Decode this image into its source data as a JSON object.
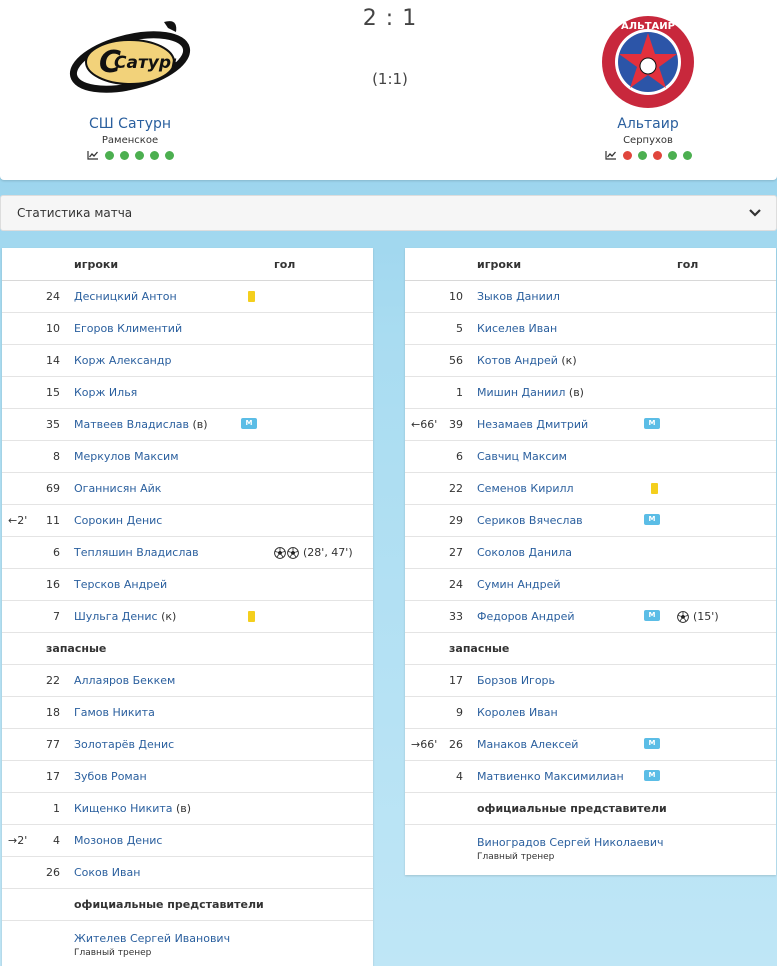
{
  "match": {
    "score": "2 : 1",
    "halftime": "(1:1)"
  },
  "home": {
    "name": "СШ Сатурн",
    "city": "Раменское",
    "form": [
      "w",
      "w",
      "w",
      "w",
      "w"
    ],
    "logo_text": "Сатурн"
  },
  "away": {
    "name": "Альтаир",
    "city": "Серпухов",
    "form": [
      "l",
      "w",
      "l",
      "w",
      "w"
    ],
    "logo_text": "АЛЬТАИР"
  },
  "stats_bar": {
    "label": "Статистика матча"
  },
  "columns": {
    "players": "игроки",
    "goal": "гол"
  },
  "home_lineup": {
    "starters": [
      {
        "num": "24",
        "name": "Десницкий Антон",
        "card": true
      },
      {
        "num": "10",
        "name": "Егоров Климентий"
      },
      {
        "num": "14",
        "name": "Корж Александр"
      },
      {
        "num": "15",
        "name": "Корж Илья"
      },
      {
        "num": "35",
        "name": "Матвеев Владислав",
        "role": "(в)",
        "badge": "М"
      },
      {
        "num": "8",
        "name": "Меркулов Максим"
      },
      {
        "num": "69",
        "name": "Оганнисян Айк"
      },
      {
        "num": "11",
        "name": "Сорокин Денис",
        "sub": "←2'"
      },
      {
        "num": "6",
        "name": "Тепляшин Владислав",
        "balls": 2,
        "goals": "(28', 47')"
      },
      {
        "num": "16",
        "name": "Терсков Андрей"
      },
      {
        "num": "7",
        "name": "Шульга Денис",
        "role": "(к)",
        "card": true
      }
    ],
    "subs_label": "запасные",
    "subs": [
      {
        "num": "22",
        "name": "Аллаяров Беккем"
      },
      {
        "num": "18",
        "name": "Гамов Никита"
      },
      {
        "num": "77",
        "name": "Золотарёв Денис"
      },
      {
        "num": "17",
        "name": "Зубов Роман"
      },
      {
        "num": "1",
        "name": "Кищенко Никита",
        "role": "(в)"
      },
      {
        "num": "4",
        "name": "Мозонов Денис",
        "sub": "→2'"
      },
      {
        "num": "26",
        "name": "Соков Иван"
      }
    ],
    "officials_label": "официальные представители",
    "officials": [
      {
        "name": "Жителев Сергей Иванович",
        "title": "Главный тренер"
      }
    ]
  },
  "away_lineup": {
    "starters": [
      {
        "num": "10",
        "name": "Зыков Даниил"
      },
      {
        "num": "5",
        "name": "Киселев Иван"
      },
      {
        "num": "56",
        "name": "Котов Андрей",
        "role": "(к)"
      },
      {
        "num": "1",
        "name": "Мишин Даниил",
        "role": "(в)"
      },
      {
        "num": "39",
        "name": "Незамаев Дмитрий",
        "sub": "←66'",
        "badge": "М"
      },
      {
        "num": "6",
        "name": "Савчиц Максим"
      },
      {
        "num": "22",
        "name": "Семенов Кирилл",
        "card": true
      },
      {
        "num": "29",
        "name": "Сериков Вячеслав",
        "badge": "М"
      },
      {
        "num": "27",
        "name": "Соколов Данила"
      },
      {
        "num": "24",
        "name": "Сумин Андрей"
      },
      {
        "num": "33",
        "name": "Федоров Андрей",
        "badge": "М",
        "balls": 1,
        "goals": "(15')"
      }
    ],
    "subs_label": "запасные",
    "subs": [
      {
        "num": "17",
        "name": "Борзов Игорь"
      },
      {
        "num": "9",
        "name": "Королев Иван"
      },
      {
        "num": "26",
        "name": "Манаков Алексей",
        "sub": "→66'",
        "badge": "М"
      },
      {
        "num": "4",
        "name": "Матвиенко Максимилиан",
        "badge": "М"
      }
    ],
    "officials_label": "официальные представители",
    "officials": [
      {
        "name": "Виноградов Сергей Николаевич",
        "title": "Главный тренер"
      }
    ]
  },
  "icons": {
    "trend": "trend-chart-icon",
    "card": "yellow-card-icon",
    "ball": "soccer-ball-icon",
    "chevron": "chevron-down-icon"
  },
  "colors": {
    "link": "#2a5f9e",
    "win": "#4caf50",
    "loss": "#e0463c",
    "card": "#f4cf1d",
    "badge": "#5bbde6"
  }
}
